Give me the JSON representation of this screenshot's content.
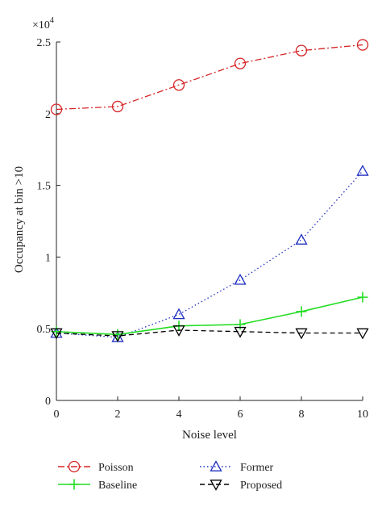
{
  "chart_data": {
    "type": "line",
    "title": "",
    "xlabel": "Noise level",
    "ylabel": "Occupancy at bin >10",
    "y_multiplier_base": "×10",
    "y_multiplier_exp": "4",
    "xlim": [
      0,
      10
    ],
    "ylim": [
      0,
      2.5
    ],
    "grid": false,
    "legend_position": "bottom",
    "x": [
      0,
      2,
      4,
      6,
      8,
      10
    ],
    "x_tick_labels": [
      "0",
      "2",
      "4",
      "6",
      "8",
      "10"
    ],
    "y_ticks": [
      0,
      0.5,
      1,
      1.5,
      2,
      2.5
    ],
    "y_tick_labels": [
      "0",
      "0.5",
      "1",
      "1.5",
      "2",
      "2.5"
    ],
    "series": [
      {
        "name": "Poisson",
        "values": [
          2.03,
          2.05,
          2.2,
          2.35,
          2.44,
          2.48
        ],
        "color": "#d62728",
        "dash": "dashdot",
        "marker": "circle"
      },
      {
        "name": "Former",
        "values": [
          0.47,
          0.44,
          0.6,
          0.84,
          1.12,
          1.6
        ],
        "color": "#1f2fbf",
        "dash": "dotted",
        "marker": "triangle-up"
      },
      {
        "name": "Baseline",
        "values": [
          0.48,
          0.46,
          0.52,
          0.53,
          0.62,
          0.72
        ],
        "color": "#22dd22",
        "dash": "solid",
        "marker": "plus"
      },
      {
        "name": "Proposed",
        "values": [
          0.47,
          0.45,
          0.49,
          0.48,
          0.47,
          0.47
        ],
        "color": "#000000",
        "dash": "dashed",
        "marker": "triangle-down"
      }
    ]
  }
}
